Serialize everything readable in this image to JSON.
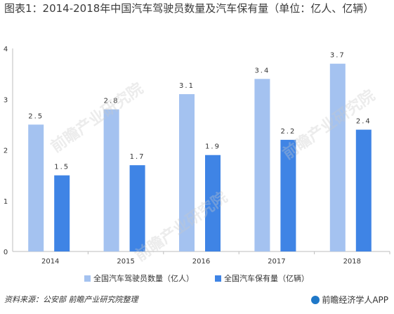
{
  "title": "图表1：2014-2018年中国汽车驾驶员数量及汽车保有量（单位：亿人、亿辆）",
  "source": "资料来源：公安部 前瞻产业研究院整理",
  "brand": "前瞻经济学人APP",
  "watermark": "前瞻产业研究院",
  "colors": {
    "drivers": "#a4c2f0",
    "vehicles": "#3f84e5"
  },
  "chart_data": {
    "type": "bar",
    "categories": [
      "2014",
      "2015",
      "2016",
      "2017",
      "2018"
    ],
    "series": [
      {
        "name": "全国汽车驾驶员数量（亿人）",
        "values": [
          2.5,
          2.8,
          3.1,
          3.4,
          3.7
        ],
        "labels": [
          "2.5",
          "2.8",
          "3.1",
          "3.4",
          "3.7"
        ]
      },
      {
        "name": "全国汽车保有量（亿辆）",
        "values": [
          1.5,
          1.7,
          1.9,
          2.2,
          2.4
        ],
        "labels": [
          "1.5",
          "1.7",
          "1.9",
          "2.2",
          "2.4"
        ]
      }
    ],
    "yticks": [
      "0",
      "1",
      "2",
      "3",
      "4"
    ],
    "ylim": [
      0,
      4
    ],
    "xlabel": "",
    "ylabel": "",
    "legend": "bottom"
  }
}
